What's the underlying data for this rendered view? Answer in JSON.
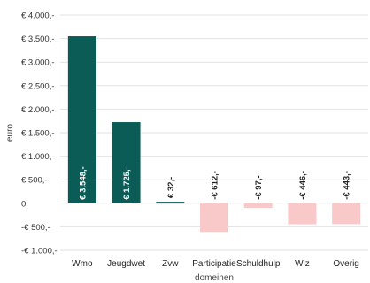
{
  "chart_data": {
    "type": "bar",
    "categories": [
      "Wmo",
      "Jeugdwet",
      "Zvw",
      "Participatie",
      "Schuldhulp",
      "Wlz",
      "Overig"
    ],
    "values": [
      3548,
      1725,
      32,
      -612,
      -97,
      -446,
      -443
    ],
    "data_labels": [
      "€ 3.548,-",
      "€ 1.725,-",
      "€ 32,-",
      "-€ 612,-",
      "-€ 97,-",
      "-€ 446,-",
      "-€ 443,-"
    ],
    "xlabel": "domeinen",
    "ylabel": "euro",
    "ylim": [
      -1000,
      4000
    ],
    "yticks": [
      4000,
      3500,
      3000,
      2500,
      2000,
      1500,
      1000,
      500,
      0,
      -500,
      -1000
    ],
    "ytick_labels": [
      "€ 4.000,-",
      "€ 3.500,-",
      "€ 3.000,-",
      "€ 2.500,-",
      "€ 2.000,-",
      "€ 1.500,-",
      "€ 1.000,-",
      "€ 500,-",
      "0",
      "-€ 500,-",
      "-€ 1.000,-"
    ],
    "grid": true,
    "legend": "none",
    "colors": {
      "positive": "#0b5c57",
      "negative": "#f9c9c9",
      "positive_label": "#ffffff",
      "negative_label": "#222222"
    }
  }
}
